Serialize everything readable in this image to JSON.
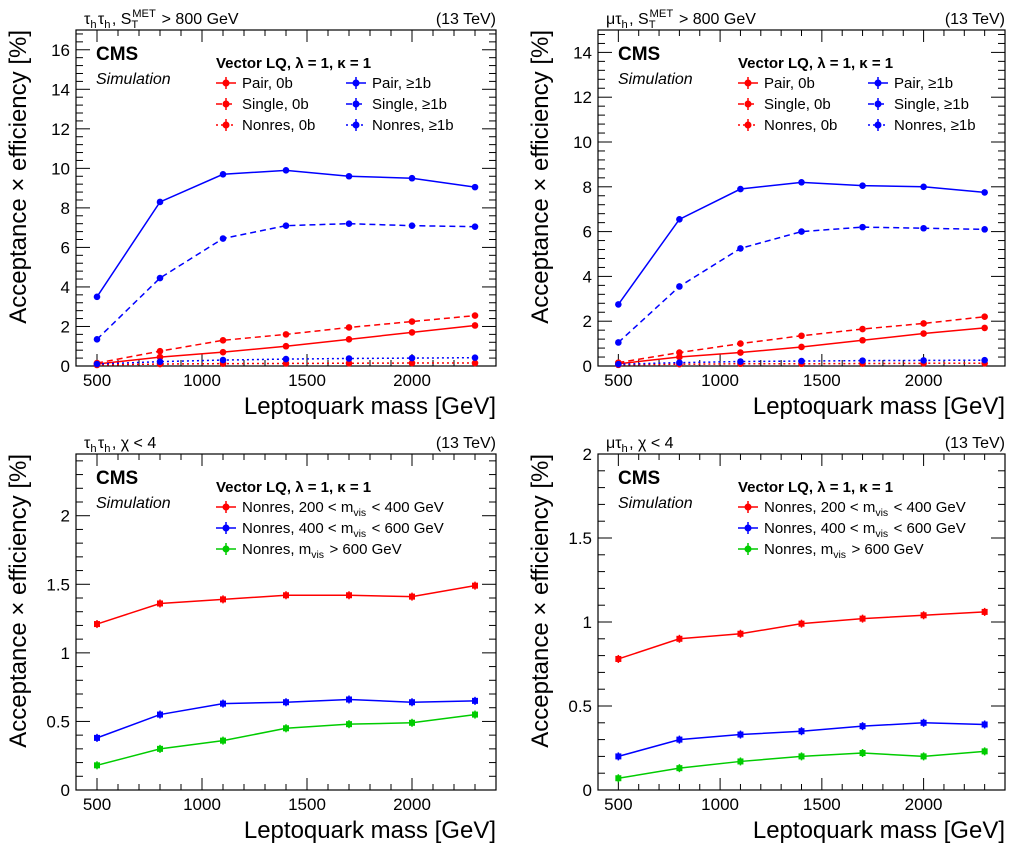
{
  "chart_data": [
    {
      "type": "line",
      "corner_label": "τhτh, STMET > 800 GeV",
      "energy_label": "(13 TeV)",
      "experiment": "CMS",
      "status": "Simulation",
      "legend_header": "Vector LQ, λ = 1, κ = 1",
      "xlabel": "Leptoquark mass [GeV]",
      "ylabel": "Acceptance × efficiency [%]",
      "xlim": [
        400,
        2400
      ],
      "ylim": [
        0,
        17
      ],
      "xticks": [
        500,
        1000,
        1500,
        2000
      ],
      "yticks": [
        0,
        2,
        4,
        6,
        8,
        10,
        12,
        14,
        16
      ],
      "x": [
        500,
        800,
        1100,
        1400,
        1700,
        2000,
        2300
      ],
      "series": [
        {
          "name": "Pair, 0b",
          "color": "#ff0000",
          "style": "solid",
          "values": [
            0.1,
            0.45,
            0.7,
            1.0,
            1.35,
            1.7,
            2.05
          ]
        },
        {
          "name": "Pair, ≥1b",
          "color": "#0000ff",
          "style": "solid",
          "values": [
            3.5,
            8.3,
            9.7,
            9.9,
            9.6,
            9.5,
            9.05
          ]
        },
        {
          "name": "Single, 0b",
          "color": "#ff0000",
          "style": "dashed",
          "values": [
            0.15,
            0.75,
            1.3,
            1.6,
            1.95,
            2.25,
            2.55
          ]
        },
        {
          "name": "Single, ≥1b",
          "color": "#0000ff",
          "style": "dashed",
          "values": [
            1.35,
            4.45,
            6.45,
            7.1,
            7.2,
            7.1,
            7.05
          ]
        },
        {
          "name": "Nonres, 0b",
          "color": "#ff0000",
          "style": "dotted",
          "values": [
            0.05,
            0.1,
            0.12,
            0.13,
            0.14,
            0.15,
            0.15
          ]
        },
        {
          "name": "Nonres, ≥1b",
          "color": "#0000ff",
          "style": "dotted",
          "values": [
            0.1,
            0.22,
            0.3,
            0.35,
            0.38,
            0.4,
            0.42
          ]
        }
      ]
    },
    {
      "type": "line",
      "corner_label": "μτh, STMET > 800 GeV",
      "energy_label": "(13 TeV)",
      "experiment": "CMS",
      "status": "Simulation",
      "legend_header": "Vector LQ, λ = 1, κ = 1",
      "xlabel": "Leptoquark mass [GeV]",
      "ylabel": "Acceptance × efficiency [%]",
      "xlim": [
        400,
        2400
      ],
      "ylim": [
        0,
        15
      ],
      "xticks": [
        500,
        1000,
        1500,
        2000
      ],
      "yticks": [
        0,
        2,
        4,
        6,
        8,
        10,
        12,
        14
      ],
      "x": [
        500,
        800,
        1100,
        1400,
        1700,
        2000,
        2300
      ],
      "series": [
        {
          "name": "Pair, 0b",
          "color": "#ff0000",
          "style": "solid",
          "values": [
            0.1,
            0.4,
            0.6,
            0.85,
            1.15,
            1.45,
            1.7
          ]
        },
        {
          "name": "Pair, ≥1b",
          "color": "#0000ff",
          "style": "solid",
          "values": [
            2.75,
            6.55,
            7.9,
            8.2,
            8.05,
            8.0,
            7.75
          ]
        },
        {
          "name": "Single, 0b",
          "color": "#ff0000",
          "style": "dashed",
          "values": [
            0.15,
            0.6,
            1.0,
            1.35,
            1.65,
            1.9,
            2.2
          ]
        },
        {
          "name": "Single, ≥1b",
          "color": "#0000ff",
          "style": "dashed",
          "values": [
            1.05,
            3.55,
            5.25,
            6.0,
            6.2,
            6.15,
            6.1
          ]
        },
        {
          "name": "Nonres, 0b",
          "color": "#ff0000",
          "style": "dotted",
          "values": [
            0.05,
            0.08,
            0.1,
            0.1,
            0.11,
            0.12,
            0.12
          ]
        },
        {
          "name": "Nonres, ≥1b",
          "color": "#0000ff",
          "style": "dotted",
          "values": [
            0.08,
            0.15,
            0.2,
            0.22,
            0.24,
            0.25,
            0.26
          ]
        }
      ]
    },
    {
      "type": "line",
      "corner_label": "τhτh, χ < 4",
      "energy_label": "(13 TeV)",
      "experiment": "CMS",
      "status": "Simulation",
      "legend_header": "Vector LQ, λ = 1, κ = 1",
      "xlabel": "Leptoquark mass [GeV]",
      "ylabel": "Acceptance × efficiency [%]",
      "xlim": [
        400,
        2400
      ],
      "ylim": [
        0,
        2.45
      ],
      "xticks": [
        500,
        1000,
        1500,
        2000
      ],
      "yticks": [
        0,
        0.5,
        1,
        1.5,
        2
      ],
      "x": [
        500,
        800,
        1100,
        1400,
        1700,
        2000,
        2300
      ],
      "series": [
        {
          "name": "Nonres, 200 < mvis < 400 GeV",
          "color": "#ff0000",
          "style": "solid",
          "values": [
            1.21,
            1.36,
            1.39,
            1.42,
            1.42,
            1.41,
            1.49
          ]
        },
        {
          "name": "Nonres, 400 < mvis < 600 GeV",
          "color": "#0000ff",
          "style": "solid",
          "values": [
            0.38,
            0.55,
            0.63,
            0.64,
            0.66,
            0.64,
            0.65
          ]
        },
        {
          "name": "Nonres, mvis > 600 GeV",
          "color": "#00cc00",
          "style": "solid",
          "values": [
            0.18,
            0.3,
            0.36,
            0.45,
            0.48,
            0.49,
            0.55
          ]
        }
      ]
    },
    {
      "type": "line",
      "corner_label": "μτh, χ < 4",
      "energy_label": "(13 TeV)",
      "experiment": "CMS",
      "status": "Simulation",
      "legend_header": "Vector LQ, λ = 1, κ = 1",
      "xlabel": "Leptoquark mass [GeV]",
      "ylabel": "Acceptance × efficiency [%]",
      "xlim": [
        400,
        2400
      ],
      "ylim": [
        0,
        2
      ],
      "xticks": [
        500,
        1000,
        1500,
        2000
      ],
      "yticks": [
        0,
        0.5,
        1,
        1.5,
        2
      ],
      "x": [
        500,
        800,
        1100,
        1400,
        1700,
        2000,
        2300
      ],
      "series": [
        {
          "name": "Nonres, 200 < mvis < 400 GeV",
          "color": "#ff0000",
          "style": "solid",
          "values": [
            0.78,
            0.9,
            0.93,
            0.99,
            1.02,
            1.04,
            1.06
          ]
        },
        {
          "name": "Nonres, 400 < mvis < 600 GeV",
          "color": "#0000ff",
          "style": "solid",
          "values": [
            0.2,
            0.3,
            0.33,
            0.35,
            0.38,
            0.4,
            0.39
          ]
        },
        {
          "name": "Nonres, mvis > 600 GeV",
          "color": "#00cc00",
          "style": "solid",
          "values": [
            0.07,
            0.13,
            0.17,
            0.2,
            0.22,
            0.2,
            0.23
          ]
        }
      ]
    }
  ]
}
